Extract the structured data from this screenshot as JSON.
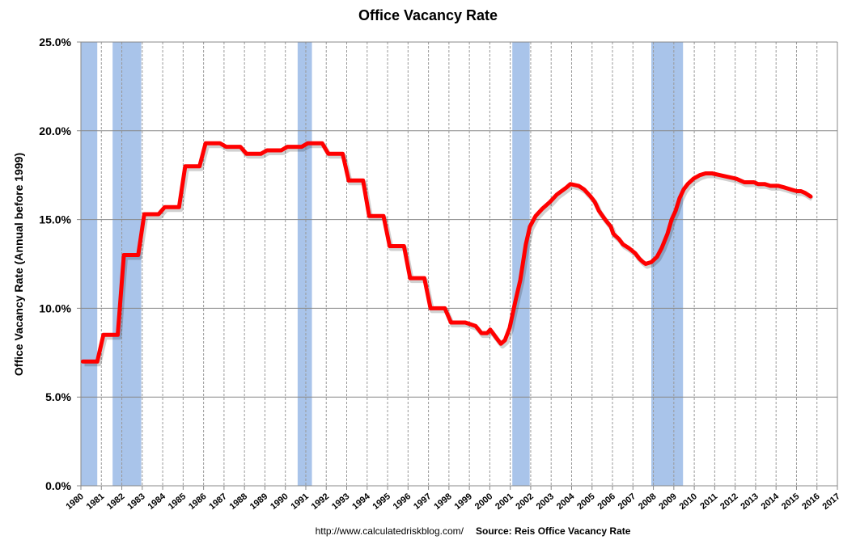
{
  "chart_data": {
    "type": "line",
    "title": "Office Vacancy Rate",
    "ylabel": "Office Vacancy Rate (Annual before 1999)",
    "xlabel": "",
    "xlim": [
      1980,
      2017
    ],
    "ylim": [
      0,
      25
    ],
    "y_ticks": [
      "0.0%",
      "5.0%",
      "10.0%",
      "15.0%",
      "20.0%",
      "25.0%"
    ],
    "x_ticks": [
      "1980",
      "1981",
      "1982",
      "1983",
      "1984",
      "1985",
      "1986",
      "1987",
      "1988",
      "1989",
      "1990",
      "1991",
      "1992",
      "1993",
      "1994",
      "1995",
      "1996",
      "1997",
      "1998",
      "1999",
      "2000",
      "2001",
      "2002",
      "2003",
      "2004",
      "2005",
      "2006",
      "2007",
      "2008",
      "2009",
      "2010",
      "2011",
      "2012",
      "2013",
      "2014",
      "2015",
      "2016",
      "2017"
    ],
    "grid": {
      "horizontal": "solid",
      "vertical": "dashed"
    },
    "line_color": "#ff0000",
    "recession_color": "#a9c4ea",
    "recessions": [
      [
        1980.0,
        1980.8
      ],
      [
        1981.55,
        1982.95
      ],
      [
        1990.6,
        1991.3
      ],
      [
        2001.1,
        2001.95
      ],
      [
        2007.9,
        2009.45
      ]
    ],
    "annual": {
      "years": [
        1980,
        1981,
        1982,
        1983,
        1984,
        1985,
        1986,
        1987,
        1988,
        1989,
        1990,
        1991,
        1992,
        1993,
        1994,
        1995,
        1996,
        1997,
        1998
      ],
      "values": [
        7.0,
        8.5,
        13.0,
        15.3,
        15.7,
        18.0,
        19.3,
        19.1,
        18.7,
        18.9,
        19.1,
        19.3,
        18.7,
        17.2,
        15.2,
        13.5,
        11.7,
        10.0,
        9.2
      ]
    },
    "quarterly": [
      [
        1998.8,
        9.2
      ],
      [
        1999.31,
        9.0
      ],
      [
        1999.59,
        8.6
      ],
      [
        1999.87,
        8.6
      ],
      [
        2000.02,
        8.8
      ],
      [
        2000.34,
        8.3
      ],
      [
        2000.54,
        8.0
      ],
      [
        2000.74,
        8.2
      ],
      [
        2000.97,
        8.9
      ],
      [
        2001.25,
        10.4
      ],
      [
        2001.49,
        11.6
      ],
      [
        2001.76,
        13.6
      ],
      [
        2001.96,
        14.6
      ],
      [
        2002.24,
        15.2
      ],
      [
        2002.56,
        15.6
      ],
      [
        2002.95,
        16.0
      ],
      [
        2003.27,
        16.4
      ],
      [
        2003.74,
        16.8
      ],
      [
        2003.94,
        17.0
      ],
      [
        2004.34,
        16.9
      ],
      [
        2004.61,
        16.7
      ],
      [
        2004.93,
        16.3
      ],
      [
        2005.13,
        16.0
      ],
      [
        2005.33,
        15.5
      ],
      [
        2005.64,
        15.0
      ],
      [
        2005.92,
        14.6
      ],
      [
        2006.04,
        14.2
      ],
      [
        2006.32,
        13.9
      ],
      [
        2006.51,
        13.6
      ],
      [
        2006.79,
        13.4
      ],
      [
        2007.11,
        13.1
      ],
      [
        2007.31,
        12.8
      ],
      [
        2007.5,
        12.6
      ],
      [
        2007.62,
        12.5
      ],
      [
        2007.9,
        12.6
      ],
      [
        2008.18,
        12.9
      ],
      [
        2008.41,
        13.4
      ],
      [
        2008.69,
        14.2
      ],
      [
        2008.89,
        15.0
      ],
      [
        2009.09,
        15.5
      ],
      [
        2009.28,
        16.2
      ],
      [
        2009.48,
        16.7
      ],
      [
        2009.68,
        17.0
      ],
      [
        2009.96,
        17.3
      ],
      [
        2010.27,
        17.5
      ],
      [
        2010.55,
        17.6
      ],
      [
        2010.87,
        17.6
      ],
      [
        2011.26,
        17.5
      ],
      [
        2011.66,
        17.4
      ],
      [
        2012.05,
        17.3
      ],
      [
        2012.25,
        17.2
      ],
      [
        2012.45,
        17.1
      ],
      [
        2012.92,
        17.1
      ],
      [
        2013.12,
        17.0
      ],
      [
        2013.44,
        17.0
      ],
      [
        2013.72,
        16.9
      ],
      [
        2014.11,
        16.9
      ],
      [
        2014.43,
        16.8
      ],
      [
        2014.71,
        16.7
      ],
      [
        2015.02,
        16.6
      ],
      [
        2015.22,
        16.6
      ],
      [
        2015.42,
        16.5
      ],
      [
        2015.69,
        16.3
      ]
    ]
  },
  "footer": {
    "url": "http://www.calculatedriskblog.com/",
    "source": "Source: Reis Office Vacancy Rate"
  }
}
